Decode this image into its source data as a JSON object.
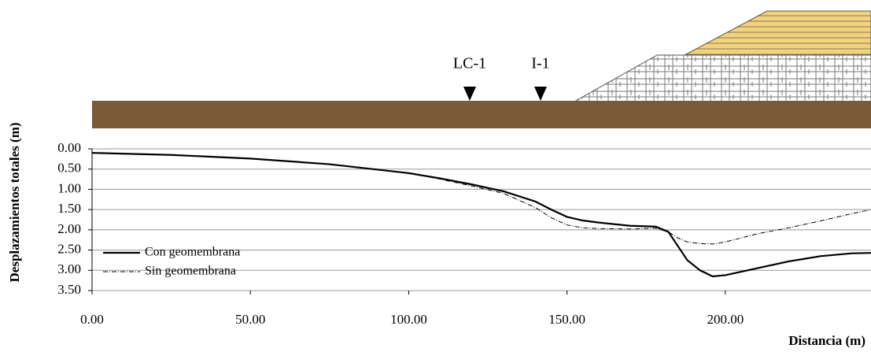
{
  "chart_data": {
    "type": "line",
    "y_axis_label": "Desplazamientos totales (m)",
    "x_axis_label": "Distancia (m)",
    "annotations": [
      "LC-1",
      "I-1"
    ],
    "x": [
      0,
      25,
      50,
      75,
      100,
      110,
      120,
      130,
      140,
      145,
      150,
      155,
      160,
      170,
      178,
      182,
      185,
      188,
      192,
      196,
      200,
      210,
      220,
      230,
      240,
      246
    ],
    "series": [
      {
        "name": "Con geomembrana",
        "color": "#000000",
        "dash": "solid",
        "values": [
          0.1,
          0.15,
          0.24,
          0.38,
          0.6,
          0.73,
          0.88,
          1.05,
          1.3,
          1.5,
          1.68,
          1.77,
          1.82,
          1.9,
          1.92,
          2.05,
          2.4,
          2.75,
          3.0,
          3.15,
          3.12,
          2.95,
          2.78,
          2.65,
          2.58,
          2.57
        ]
      },
      {
        "name": "Sin geomembrana",
        "color": "#000000",
        "dash": "dashdot",
        "values": [
          0.1,
          0.15,
          0.24,
          0.38,
          0.6,
          0.75,
          0.92,
          1.1,
          1.45,
          1.7,
          1.88,
          1.95,
          1.97,
          1.98,
          1.96,
          2.05,
          2.2,
          2.3,
          2.34,
          2.35,
          2.3,
          2.1,
          1.95,
          1.78,
          1.6,
          1.5
        ]
      }
    ],
    "xlim": [
      0,
      246
    ],
    "xticks": [
      {
        "value": 0,
        "label": "0.00"
      },
      {
        "value": 50,
        "label": "50.00"
      },
      {
        "value": 100,
        "label": "100.00"
      },
      {
        "value": 150,
        "label": "150.00"
      },
      {
        "value": 200,
        "label": "200.00"
      }
    ],
    "ylim": [
      0,
      3.5
    ],
    "y_inverted": true,
    "yticks": [
      {
        "value": 0,
        "label": "0.00"
      },
      {
        "value": 0.5,
        "label": "0.50"
      },
      {
        "value": 1,
        "label": "1.00"
      },
      {
        "value": 1.5,
        "label": "1.50"
      },
      {
        "value": 2,
        "label": "2.00"
      },
      {
        "value": 2.5,
        "label": "2.50"
      },
      {
        "value": 3,
        "label": "3.00"
      },
      {
        "value": 3.5,
        "label": "3.50"
      }
    ],
    "grid": true,
    "legend": "lower-left"
  }
}
